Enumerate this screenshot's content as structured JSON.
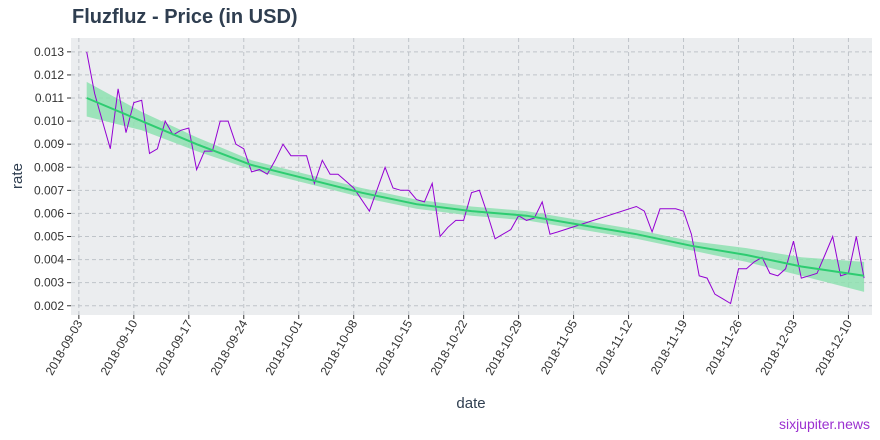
{
  "title": "Fluzfluz - Price (in USD)",
  "watermark": "sixjupiter.news",
  "chart_data": {
    "type": "line",
    "title": "Fluzfluz - Price (in USD)",
    "xlabel": "date",
    "ylabel": "rate",
    "x_ticks": [
      "2018-09-03",
      "2018-09-10",
      "2018-09-17",
      "2018-09-24",
      "2018-10-01",
      "2018-10-08",
      "2018-10-15",
      "2018-10-22",
      "2018-10-29",
      "2018-11-05",
      "2018-11-12",
      "2018-11-19",
      "2018-11-26",
      "2018-12-03",
      "2018-12-10"
    ],
    "y_ticks": [
      "0.002",
      "0.003",
      "0.004",
      "0.005",
      "0.006",
      "0.007",
      "0.008",
      "0.009",
      "0.010",
      "0.011",
      "0.012",
      "0.013"
    ],
    "xlim": [
      "2018-09-02",
      "2018-12-13"
    ],
    "ylim": [
      0.0016,
      0.0136
    ],
    "grid": true,
    "colors": {
      "price": "#9400d3",
      "trend": "#2ecc71",
      "band": "#8ee0b0",
      "panel": "#ebedef",
      "grid": "#bfc4c9"
    },
    "series": [
      {
        "type": "line",
        "x": [
          "2018-09-04",
          "2018-09-05",
          "2018-09-06",
          "2018-09-07",
          "2018-09-08",
          "2018-09-09",
          "2018-09-10",
          "2018-09-11",
          "2018-09-12",
          "2018-09-13",
          "2018-09-14",
          "2018-09-15",
          "2018-09-16",
          "2018-09-17",
          "2018-09-18",
          "2018-09-19",
          "2018-09-20",
          "2018-09-21",
          "2018-09-22",
          "2018-09-23",
          "2018-09-24",
          "2018-09-25",
          "2018-09-26",
          "2018-09-27",
          "2018-09-28",
          "2018-09-29",
          "2018-09-30",
          "2018-10-01",
          "2018-10-02",
          "2018-10-03",
          "2018-10-04",
          "2018-10-05",
          "2018-10-06",
          "2018-10-07",
          "2018-10-08",
          "2018-10-10",
          "2018-10-12",
          "2018-10-13",
          "2018-10-14",
          "2018-10-15",
          "2018-10-16",
          "2018-10-17",
          "2018-10-18",
          "2018-10-19",
          "2018-10-20",
          "2018-10-21",
          "2018-10-22",
          "2018-10-23",
          "2018-10-24",
          "2018-10-25",
          "2018-10-26",
          "2018-10-27",
          "2018-10-28",
          "2018-10-29",
          "2018-10-30",
          "2018-10-31",
          "2018-11-01",
          "2018-11-02",
          "2018-11-03",
          "2018-11-13",
          "2018-11-14",
          "2018-11-15",
          "2018-11-16",
          "2018-11-17",
          "2018-11-18",
          "2018-11-19",
          "2018-11-20",
          "2018-11-21",
          "2018-11-22",
          "2018-11-23",
          "2018-11-24",
          "2018-11-25",
          "2018-11-26",
          "2018-11-27",
          "2018-11-28",
          "2018-11-29",
          "2018-11-30",
          "2018-12-01",
          "2018-12-02",
          "2018-12-03",
          "2018-12-04",
          "2018-12-05",
          "2018-12-06",
          "2018-12-07",
          "2018-12-08",
          "2018-12-09",
          "2018-12-10",
          "2018-12-11",
          "2018-12-12"
        ],
        "y": [
          0.013,
          0.0112,
          0.01,
          0.0088,
          0.0114,
          0.0095,
          0.0108,
          0.0109,
          0.0086,
          0.0088,
          0.01,
          0.0094,
          0.0096,
          0.0097,
          0.0079,
          0.0087,
          0.0087,
          0.01,
          0.01,
          0.009,
          0.0088,
          0.0078,
          0.0079,
          0.0077,
          0.0083,
          0.009,
          0.0085,
          0.0085,
          0.0085,
          0.0073,
          0.0083,
          0.0077,
          0.0077,
          0.0074,
          0.0071,
          0.0061,
          0.008,
          0.0071,
          0.007,
          0.007,
          0.0066,
          0.0065,
          0.0073,
          0.005,
          0.0054,
          0.0057,
          0.0057,
          0.0069,
          0.007,
          0.006,
          0.0049,
          0.0051,
          0.0053,
          0.0059,
          0.0057,
          0.0058,
          0.0065,
          0.0051,
          0.0052,
          0.0063,
          0.0061,
          0.0052,
          0.0062,
          0.0062,
          0.0062,
          0.0061,
          0.0051,
          0.0033,
          0.0032,
          0.0025,
          0.0023,
          0.0021,
          0.0036,
          0.0036,
          0.0039,
          0.0041,
          0.0034,
          0.0033,
          0.0036,
          0.0048,
          0.0032,
          0.0033,
          0.0034,
          0.0042,
          0.005,
          0.0033,
          0.0034,
          0.005,
          0.0032
        ]
      },
      {
        "type": "smooth",
        "x": [
          "2018-09-04",
          "2018-09-11",
          "2018-09-18",
          "2018-09-25",
          "2018-10-02",
          "2018-10-09",
          "2018-10-16",
          "2018-10-23",
          "2018-10-30",
          "2018-11-06",
          "2018-11-13",
          "2018-11-20",
          "2018-11-27",
          "2018-12-04",
          "2018-12-12"
        ],
        "y": [
          0.011,
          0.01,
          0.009,
          0.0081,
          0.0075,
          0.0069,
          0.0064,
          0.0061,
          0.0059,
          0.0055,
          0.0051,
          0.0046,
          0.0042,
          0.0037,
          0.0033
        ],
        "lower": [
          0.0102,
          0.0096,
          0.0087,
          0.0079,
          0.0073,
          0.0067,
          0.0062,
          0.0059,
          0.0057,
          0.0053,
          0.0049,
          0.0044,
          0.0039,
          0.0033,
          0.0026
        ],
        "upper": [
          0.0117,
          0.0104,
          0.0093,
          0.0083,
          0.0077,
          0.0071,
          0.0066,
          0.0063,
          0.0061,
          0.0057,
          0.0053,
          0.0048,
          0.0045,
          0.0041,
          0.0039
        ]
      }
    ]
  }
}
